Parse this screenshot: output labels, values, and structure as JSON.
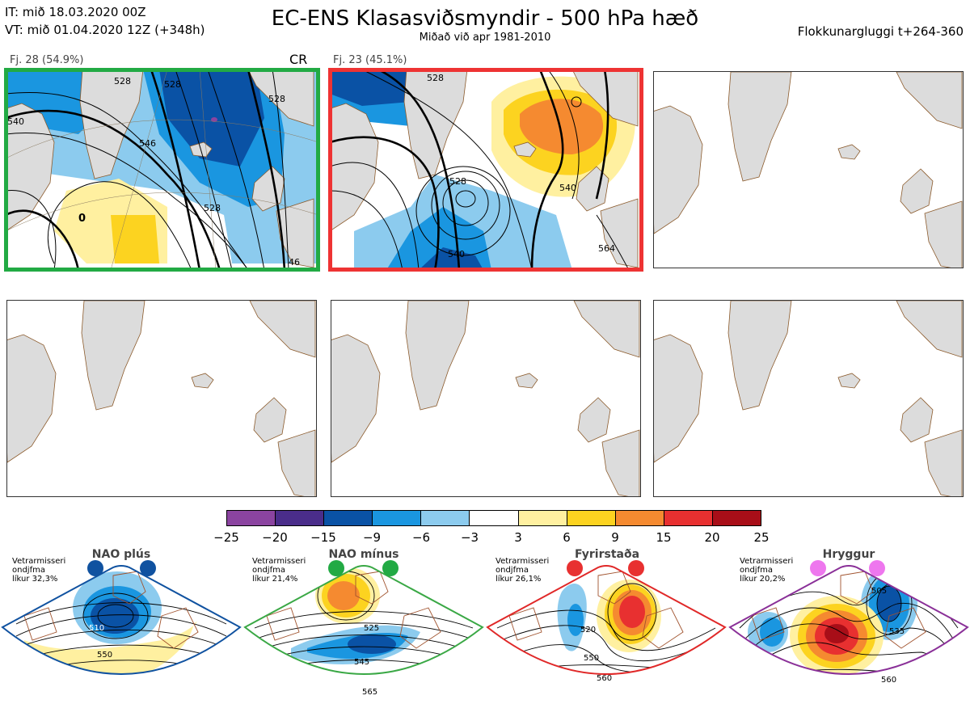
{
  "header": {
    "init_time": "IT: mið 18.03.2020 00Z",
    "valid_time": "VT: mið 01.04.2020 12Z  (+348h)",
    "title": "EC-ENS Klasasviðsmyndir - 500 hPa hæð",
    "subtitle": "Miðað við apr 1981-2010",
    "window": "Flokkunargluggi t+264-360"
  },
  "clusters": [
    {
      "label": "Fj. 28 (54.9%)",
      "tag": "CR",
      "border": "#22aa44"
    },
    {
      "label": "Fj. 23 (45.1%)",
      "border": "#ee3333"
    }
  ],
  "contour_labels": {
    "panel1": [
      "528",
      "528",
      "540",
      "528",
      "546",
      "528",
      "0",
      "46"
    ],
    "panel2": [
      "528",
      "528",
      "540",
      "540",
      "564"
    ]
  },
  "legend": {
    "ticks": [
      "−25",
      "−20",
      "−15",
      "−9",
      "−6",
      "−3",
      "3",
      "6",
      "9",
      "15",
      "20",
      "25"
    ],
    "colors": [
      "#8b44a0",
      "#4a2d8a",
      "#0a52a5",
      "#1a96e0",
      "#8ccbee",
      "#ffffff",
      "#fff0a0",
      "#fcd320",
      "#f58a30",
      "#e83030",
      "#a80e18"
    ]
  },
  "regimes": [
    {
      "name": "NAO plús",
      "note": [
        "Vetrarmisseri",
        "ondjfma",
        "líkur 32,3%"
      ],
      "color": "#1052a0",
      "dots": "#1052a0",
      "contours": [
        "510",
        "550"
      ]
    },
    {
      "name": "NAO mínus",
      "note": [
        "Vetrarmisseri",
        "ondjfma",
        "líkur 21,4%"
      ],
      "color": "#3aa845",
      "dots": "#22aa44",
      "contours": [
        "525",
        "545",
        "565"
      ]
    },
    {
      "name": "Fyrirstaða",
      "note": [
        "Vetrarmisseri",
        "ondjfma",
        "líkur 26,1%"
      ],
      "color": "#e02828",
      "dots": "#e83030",
      "contours": [
        "520",
        "550",
        "560"
      ]
    },
    {
      "name": "Hryggur",
      "note": [
        "Vetrarmisseri",
        "ondjfma",
        "líkur 20,2%"
      ],
      "color": "#8a3098",
      "dots": "#ee77ee",
      "contours": [
        "505",
        "535",
        "560"
      ]
    }
  ]
}
